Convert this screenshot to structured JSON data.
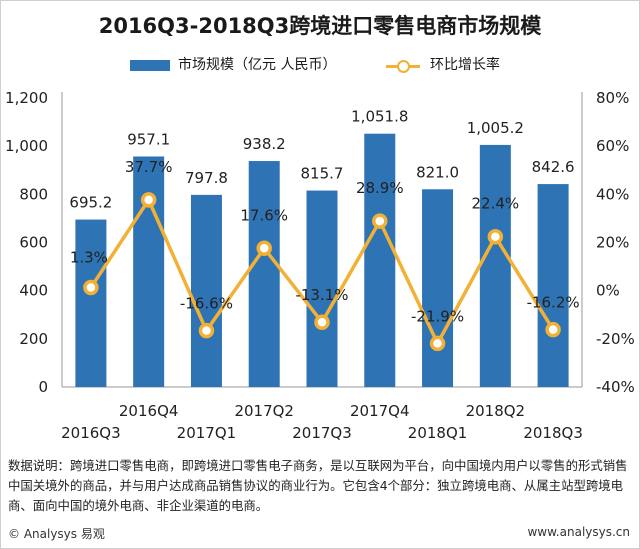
{
  "chart_data": {
    "type": "bar+line",
    "title": "2016Q3-2018Q3跨境进口零售电商市场规模",
    "categories": [
      "2016Q3",
      "2016Q4",
      "2017Q1",
      "2017Q2",
      "2017Q3",
      "2017Q4",
      "2018Q1",
      "2018Q2",
      "2018Q3"
    ],
    "series": [
      {
        "name": "市场规模（亿元 人民币）",
        "type": "bar",
        "axis": "left",
        "values": [
          695.2,
          957.1,
          797.8,
          938.2,
          815.7,
          1051.8,
          821.0,
          1005.2,
          842.6
        ],
        "labels": [
          "695.2",
          "957.1",
          "797.8",
          "938.2",
          "815.7",
          "1,051.8",
          "821.0",
          "1,005.2",
          "842.6"
        ],
        "color": "#2e74b5"
      },
      {
        "name": "环比增长率",
        "type": "line",
        "axis": "right",
        "values": [
          1.3,
          37.7,
          -16.6,
          17.6,
          -13.1,
          28.9,
          -21.9,
          22.4,
          -16.2
        ],
        "labels": [
          "1.3%",
          "37.7%",
          "-16.6%",
          "17.6%",
          "-13.1%",
          "28.9%",
          "-21.9%",
          "22.4%",
          "-16.2%"
        ],
        "color": "#f2b134"
      }
    ],
    "y_left": {
      "min": 0,
      "max": 1200,
      "ticks": [
        "0",
        "200",
        "400",
        "600",
        "800",
        "1,000",
        "1,200"
      ]
    },
    "y_right": {
      "min": -40,
      "max": 80,
      "ticks": [
        "-40%",
        "-20%",
        "0%",
        "20%",
        "40%",
        "60%",
        "80%"
      ]
    },
    "grid": false,
    "legend": "top"
  },
  "note": "数据说明：跨境进口零售电商，即跨境进口零售电子商务，是以互联网为平台，向中国境内用户以零售的形式销售中国关境外的商品，并与用户达成商品销售协议的商业行为。它包含4个部分：独立跨境电商、从属主站型跨境电商、面向中国的境外电商、非企业渠道的电商。",
  "footer": "© Analysys 易观",
  "url": "www.analysys.cn"
}
